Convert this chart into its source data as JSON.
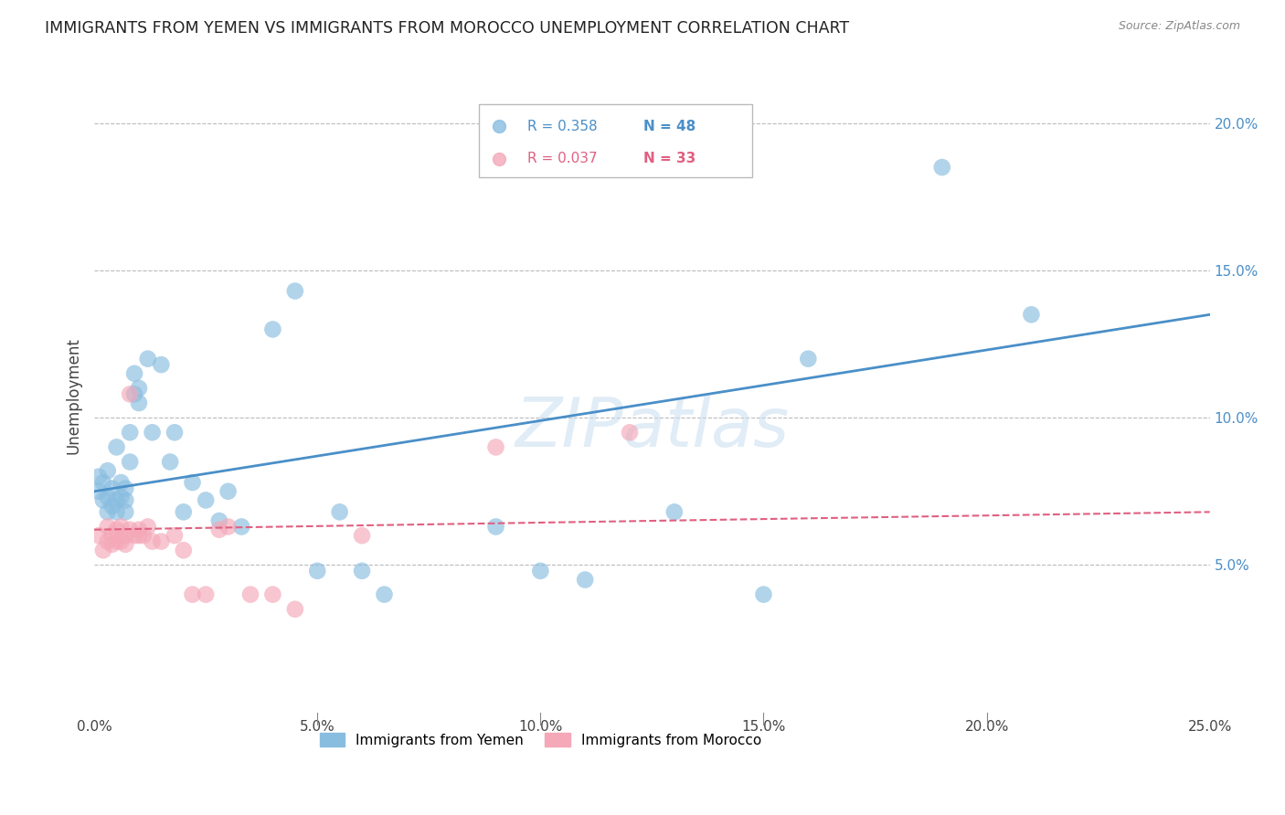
{
  "title": "IMMIGRANTS FROM YEMEN VS IMMIGRANTS FROM MOROCCO UNEMPLOYMENT CORRELATION CHART",
  "source": "Source: ZipAtlas.com",
  "ylabel": "Unemployment",
  "xlabel_ticks": [
    "0.0%",
    "5.0%",
    "10.0%",
    "15.0%",
    "20.0%",
    "25.0%"
  ],
  "watermark": "ZIPatlas",
  "xlim": [
    0.0,
    0.25
  ],
  "ylim": [
    0.0,
    0.215
  ],
  "yemen_R": 0.358,
  "yemen_N": 48,
  "morocco_R": 0.037,
  "morocco_N": 33,
  "yemen_color": "#89bde0",
  "morocco_color": "#f4a8b8",
  "yemen_line_color": "#4a8fc8",
  "morocco_line_color": "#e06080",
  "grid_color": "#bbbbbb",
  "yemen_scatter_x": [
    0.001,
    0.001,
    0.002,
    0.002,
    0.003,
    0.003,
    0.003,
    0.004,
    0.004,
    0.005,
    0.005,
    0.005,
    0.006,
    0.006,
    0.007,
    0.007,
    0.007,
    0.008,
    0.008,
    0.009,
    0.009,
    0.01,
    0.01,
    0.012,
    0.013,
    0.015,
    0.017,
    0.018,
    0.02,
    0.022,
    0.025,
    0.028,
    0.03,
    0.033,
    0.04,
    0.045,
    0.05,
    0.055,
    0.06,
    0.065,
    0.09,
    0.1,
    0.11,
    0.13,
    0.15,
    0.16,
    0.19,
    0.21
  ],
  "yemen_scatter_y": [
    0.075,
    0.08,
    0.072,
    0.078,
    0.068,
    0.073,
    0.082,
    0.07,
    0.076,
    0.068,
    0.072,
    0.09,
    0.073,
    0.078,
    0.068,
    0.072,
    0.076,
    0.095,
    0.085,
    0.108,
    0.115,
    0.105,
    0.11,
    0.12,
    0.095,
    0.118,
    0.085,
    0.095,
    0.068,
    0.078,
    0.072,
    0.065,
    0.075,
    0.063,
    0.13,
    0.143,
    0.048,
    0.068,
    0.048,
    0.04,
    0.063,
    0.048,
    0.045,
    0.068,
    0.04,
    0.12,
    0.185,
    0.135
  ],
  "morocco_scatter_x": [
    0.001,
    0.002,
    0.003,
    0.003,
    0.004,
    0.004,
    0.005,
    0.005,
    0.006,
    0.006,
    0.007,
    0.007,
    0.008,
    0.008,
    0.009,
    0.01,
    0.01,
    0.011,
    0.012,
    0.013,
    0.015,
    0.018,
    0.02,
    0.022,
    0.025,
    0.028,
    0.03,
    0.035,
    0.04,
    0.045,
    0.06,
    0.09,
    0.12
  ],
  "morocco_scatter_y": [
    0.06,
    0.055,
    0.058,
    0.063,
    0.057,
    0.06,
    0.058,
    0.062,
    0.058,
    0.063,
    0.057,
    0.06,
    0.108,
    0.062,
    0.06,
    0.06,
    0.062,
    0.06,
    0.063,
    0.058,
    0.058,
    0.06,
    0.055,
    0.04,
    0.04,
    0.062,
    0.063,
    0.04,
    0.04,
    0.035,
    0.06,
    0.09,
    0.095
  ]
}
